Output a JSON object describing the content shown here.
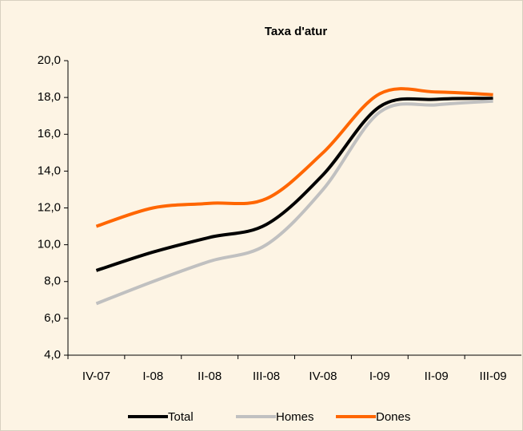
{
  "chart_data": {
    "type": "line",
    "title": "Taxa d'atur",
    "categories": [
      "IV-07",
      "I-08",
      "II-08",
      "III-08",
      "IV-08",
      "I-09",
      "II-09",
      "III-09"
    ],
    "series": [
      {
        "name": "Total",
        "color": "#000000",
        "values": [
          8.6,
          9.6,
          10.4,
          11.1,
          13.8,
          17.5,
          17.9,
          17.95
        ]
      },
      {
        "name": "Homes",
        "color": "#c0c0c0",
        "values": [
          6.8,
          8.0,
          9.1,
          10.0,
          13.0,
          17.2,
          17.6,
          17.8
        ]
      },
      {
        "name": "Dones",
        "color": "#ff6600",
        "values": [
          11.0,
          12.0,
          12.25,
          12.5,
          15.0,
          18.2,
          18.3,
          18.15
        ]
      }
    ],
    "ylim": [
      4,
      20
    ],
    "yticks": [
      {
        "value": 4,
        "label": "4,0"
      },
      {
        "value": 6,
        "label": "6,0"
      },
      {
        "value": 8,
        "label": "8,0"
      },
      {
        "value": 10,
        "label": "10,0"
      },
      {
        "value": 12,
        "label": "12,0"
      },
      {
        "value": 14,
        "label": "14,0"
      },
      {
        "value": 16,
        "label": "16,0"
      },
      {
        "value": 18,
        "label": "18,0"
      },
      {
        "value": 20,
        "label": "20,0"
      }
    ],
    "legend": "bottom"
  }
}
